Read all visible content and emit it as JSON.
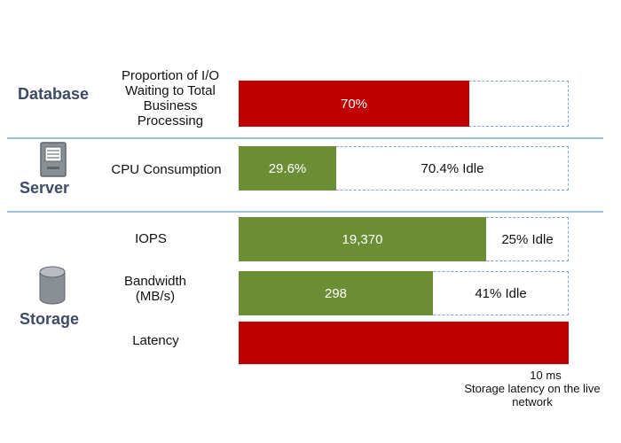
{
  "colors": {
    "red": "#c00000",
    "green": "#6b8e35",
    "frame": "#7fa4c7",
    "divider": "#9ec3dc",
    "label": "#3d4b63"
  },
  "sections": {
    "database": "Database",
    "server": "Server",
    "storage": "Storage"
  },
  "chart_data": {
    "type": "bar",
    "orientation": "horizontal",
    "unit": "percent of capacity",
    "categories": [
      "Proportion of I/O Waiting to Total Business Processing",
      "CPU Consumption",
      "IOPS",
      "Bandwidth (MB/s)",
      "Latency"
    ],
    "bars": [
      {
        "key": "io_wait",
        "label_lines": [
          "Proportion of I/O",
          "Waiting to Total",
          "Business",
          "Processing"
        ],
        "fill_pct": 70,
        "color": "red",
        "value_label": "70%",
        "idle_label": ""
      },
      {
        "key": "cpu",
        "label_lines": [
          "CPU Consumption"
        ],
        "fill_pct": 29.6,
        "color": "green",
        "value_label": "29.6%",
        "idle_label": "70.4% Idle"
      },
      {
        "key": "iops",
        "label_lines": [
          "IOPS"
        ],
        "fill_pct": 75,
        "color": "green",
        "value_label": "19,370",
        "idle_label": "25% Idle"
      },
      {
        "key": "bandwidth",
        "label_lines": [
          "Bandwidth",
          "(MB/s)"
        ],
        "fill_pct": 59,
        "color": "green",
        "value_label": "298",
        "idle_label": "41% Idle"
      },
      {
        "key": "latency",
        "label_lines": [
          "Latency"
        ],
        "fill_pct": 100,
        "color": "red",
        "value_label": "",
        "idle_label": ""
      }
    ],
    "annotation": {
      "value": "10 ms",
      "text_lines": [
        "Storage latency on the live",
        "network"
      ]
    }
  }
}
